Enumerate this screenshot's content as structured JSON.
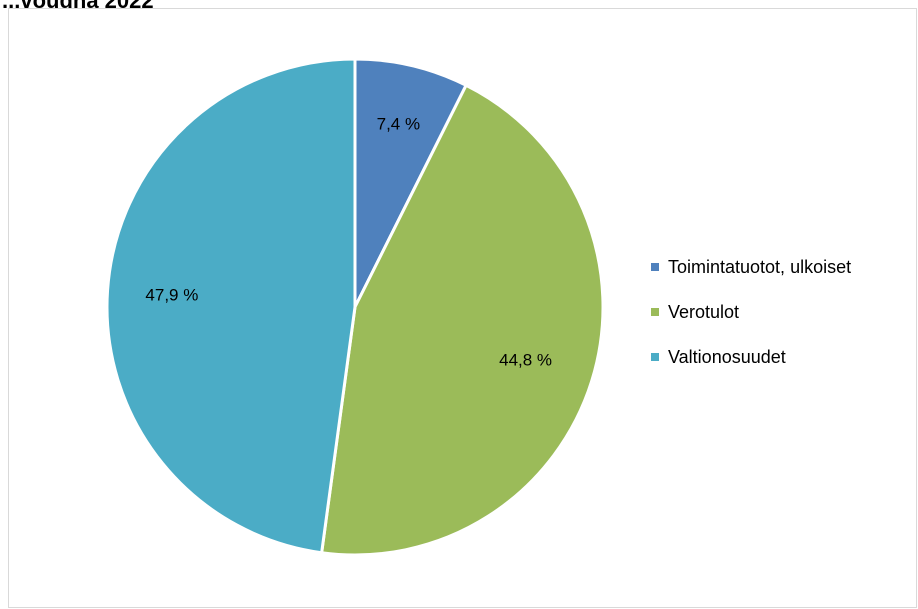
{
  "page": {
    "title": "...voudna 2022"
  },
  "chart_data": {
    "type": "pie",
    "categories": [
      "Toimintatuotot, ulkoiset",
      "Verotulot",
      "Valtionosuudet"
    ],
    "values": [
      7.4,
      44.8,
      47.9
    ],
    "data_labels": [
      "7,4 %",
      "44,8 %",
      "47,9 %"
    ],
    "colors": [
      "#4F81BD",
      "#9BBB59",
      "#4BACC6"
    ],
    "legend_position": "right",
    "start_angle": "top, clockwise"
  }
}
